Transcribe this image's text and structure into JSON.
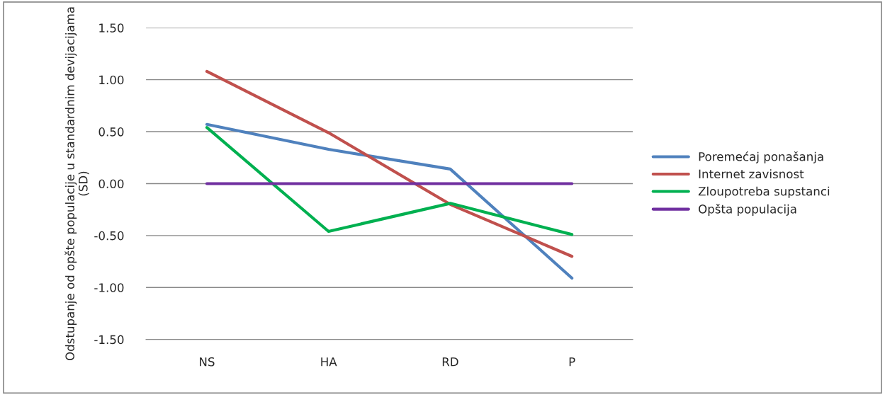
{
  "chart_data": {
    "type": "line",
    "ylabel": "Odstupanje od opšte populacije u standardnim devijacijama (SD)",
    "categories": [
      "NS",
      "HA",
      "RD",
      "P"
    ],
    "series": [
      {
        "name": "Poremećaj ponašanja",
        "color": "#4f81bd",
        "values": [
          0.57,
          0.33,
          0.14,
          -0.91
        ]
      },
      {
        "name": "Internet zavisnost",
        "color": "#c0504d",
        "values": [
          1.08,
          0.49,
          -0.2,
          -0.7
        ]
      },
      {
        "name": "Zloupotreba supstanci",
        "color": "#00b050",
        "values": [
          0.54,
          -0.46,
          -0.19,
          -0.49
        ]
      },
      {
        "name": "Opšta populacija",
        "color": "#7030a0",
        "values": [
          0,
          0,
          0,
          0
        ]
      }
    ],
    "ylim": [
      -1.5,
      1.5
    ],
    "yticks": [
      {
        "value": -1.5,
        "label": "-1.50"
      },
      {
        "value": -1,
        "label": "-1.00"
      },
      {
        "value": -0.5,
        "label": "-0.50"
      },
      {
        "value": 0,
        "label": "0.00"
      },
      {
        "value": 0.5,
        "label": "0.50"
      },
      {
        "value": 1,
        "label": "1.00"
      },
      {
        "value": 1.5,
        "label": "1.50"
      }
    ],
    "grid": "y",
    "legend": "right",
    "marker": "none",
    "line_style": "solid"
  }
}
